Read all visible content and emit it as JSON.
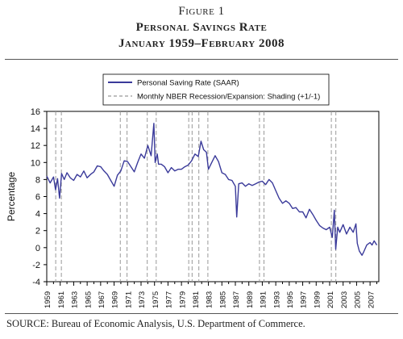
{
  "figure": {
    "label": "Figure 1",
    "title_line1": "Personal Savings Rate",
    "title_line2": "January 1959–February 2008",
    "source": "SOURCE: Bureau of Economic Analysis, U.S. Department of Commerce."
  },
  "colors": {
    "series": "#3a3a9a",
    "recession": "#999999",
    "axis": "#000000"
  },
  "chart_data": {
    "type": "line",
    "title": "Personal Savings Rate",
    "subtitle": "January 1959–February 2008",
    "xlabel": "",
    "ylabel": "Percentage",
    "xlim": [
      1959.0,
      2008.3
    ],
    "ylim": [
      -4,
      16
    ],
    "yticks": [
      -4,
      -2,
      0,
      2,
      4,
      6,
      8,
      10,
      12,
      14,
      16
    ],
    "xtick_labels": [
      "1959",
      "1961",
      "1963",
      "1965",
      "1967",
      "1969",
      "1971",
      "1973",
      "1975",
      "1977",
      "1979",
      "1981",
      "1983",
      "1985",
      "1987",
      "1989",
      "1991",
      "1993",
      "1995",
      "1997",
      "1999",
      "2001",
      "2003",
      "2005",
      "2007"
    ],
    "grid": false,
    "legend_position": "top-left",
    "series": [
      {
        "name": "Personal Saving Rate (SAAR)",
        "style": "solid",
        "x": [
          1959.0,
          1959.5,
          1960.0,
          1960.3,
          1960.6,
          1960.9,
          1961.2,
          1961.6,
          1962.0,
          1962.5,
          1963.0,
          1963.5,
          1964.0,
          1964.5,
          1965.0,
          1965.5,
          1966.0,
          1966.5,
          1967.0,
          1967.5,
          1968.0,
          1968.5,
          1969.0,
          1969.5,
          1970.0,
          1970.5,
          1971.0,
          1971.5,
          1972.0,
          1972.5,
          1973.0,
          1973.5,
          1974.0,
          1974.5,
          1974.9,
          1975.1,
          1975.4,
          1975.6,
          1976.0,
          1976.5,
          1977.0,
          1977.5,
          1978.0,
          1978.5,
          1979.0,
          1979.5,
          1980.0,
          1980.5,
          1981.0,
          1981.5,
          1981.9,
          1982.3,
          1982.7,
          1983.0,
          1983.5,
          1984.0,
          1984.5,
          1985.0,
          1985.5,
          1986.0,
          1986.5,
          1987.0,
          1987.2,
          1987.5,
          1988.0,
          1988.5,
          1989.0,
          1989.5,
          1990.0,
          1990.5,
          1991.0,
          1991.5,
          1992.0,
          1992.5,
          1993.0,
          1993.5,
          1994.0,
          1994.5,
          1995.0,
          1995.5,
          1996.0,
          1996.5,
          1997.0,
          1997.5,
          1998.0,
          1998.5,
          1999.0,
          1999.5,
          2000.0,
          2000.5,
          2001.0,
          2001.4,
          2001.7,
          2001.9,
          2002.2,
          2002.5,
          2003.0,
          2003.5,
          2004.0,
          2004.5,
          2004.9,
          2005.1,
          2005.4,
          2005.8,
          2006.0,
          2006.5,
          2007.0,
          2007.3,
          2007.6,
          2008.0
        ],
        "y": [
          8.4,
          7.6,
          8.3,
          6.8,
          8.1,
          5.8,
          8.7,
          8.0,
          8.8,
          8.2,
          7.9,
          8.6,
          8.3,
          9.0,
          8.2,
          8.6,
          8.9,
          9.6,
          9.5,
          9.0,
          8.6,
          7.9,
          7.2,
          8.5,
          9.0,
          10.2,
          10.1,
          9.5,
          8.9,
          10.0,
          11.0,
          10.5,
          12.0,
          10.8,
          14.6,
          10.0,
          11.0,
          9.8,
          9.8,
          9.5,
          8.8,
          9.4,
          9.0,
          9.2,
          9.2,
          9.5,
          9.7,
          10.2,
          11.0,
          10.7,
          12.5,
          11.5,
          11.2,
          9.2,
          10.0,
          10.8,
          10.1,
          8.8,
          8.6,
          8.0,
          7.9,
          7.2,
          3.6,
          7.5,
          7.6,
          7.2,
          7.5,
          7.3,
          7.5,
          7.7,
          7.8,
          7.4,
          8.0,
          7.6,
          6.7,
          5.8,
          5.2,
          5.5,
          5.2,
          4.6,
          4.7,
          4.2,
          4.2,
          3.5,
          4.5,
          3.9,
          3.2,
          2.6,
          2.3,
          2.1,
          2.4,
          1.2,
          4.4,
          -0.2,
          2.4,
          1.8,
          2.7,
          1.6,
          2.4,
          1.8,
          2.8,
          0.5,
          -0.4,
          -0.9,
          -0.6,
          0.3,
          0.6,
          0.3,
          0.8,
          0.3
        ]
      },
      {
        "name": "Monthly NBER Recession/Expansion: Shading (+1/-1)",
        "style": "dashed-vertical",
        "x": [
          1960.33,
          1961.17,
          1969.92,
          1970.92,
          1973.92,
          1975.25,
          1980.08,
          1980.58,
          1981.58,
          1982.92,
          1990.58,
          1991.25,
          2001.25,
          2001.92
        ]
      }
    ]
  }
}
